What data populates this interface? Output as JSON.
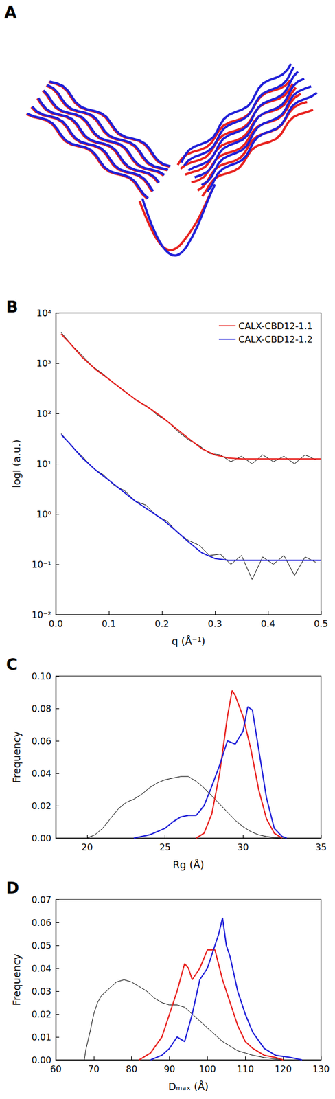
{
  "panel_a": {
    "label": "A"
  },
  "chart_data": [
    {
      "type": "line",
      "title": "B",
      "x_label": "q (Å⁻¹)",
      "y_label": "logI (a.u.)",
      "log": "y",
      "grid": false,
      "legend": "top-right",
      "xlim": [
        0,
        0.5
      ],
      "xticks": [
        {
          "value": 0,
          "label": "0.0"
        },
        0.1,
        0.2,
        0.3,
        0.4,
        0.5
      ],
      "ylim": [
        0.01,
        10000
      ],
      "yticks": [
        {
          "value": 0.01,
          "label": "10⁻²"
        },
        {
          "value": 0.1,
          "label": "10⁻¹"
        },
        {
          "value": 1,
          "label": "10⁰"
        },
        {
          "value": 10,
          "label": "10¹"
        },
        {
          "value": 100,
          "label": "10²"
        },
        {
          "value": 1000,
          "label": "10³"
        },
        {
          "value": 10000,
          "label": "10⁴"
        }
      ],
      "series": [
        {
          "color": "#000000",
          "x": [
            0.01,
            0.03,
            0.05,
            0.07,
            0.09,
            0.11,
            0.13,
            0.15,
            0.17,
            0.19,
            0.21,
            0.23,
            0.25,
            0.27,
            0.29,
            0.31,
            0.33,
            0.35,
            0.37,
            0.39,
            0.41,
            0.43,
            0.45,
            0.47,
            0.49
          ],
          "values": [
            4100,
            2300,
            1400,
            850,
            600,
            390,
            280,
            185,
            145,
            95,
            70,
            44,
            30,
            23,
            16,
            15,
            11,
            14,
            10,
            15,
            11,
            14,
            10,
            15,
            12
          ]
        },
        {
          "color": "#000000",
          "x": [
            0.01,
            0.03,
            0.05,
            0.07,
            0.09,
            0.11,
            0.13,
            0.15,
            0.17,
            0.19,
            0.21,
            0.23,
            0.25,
            0.27,
            0.29,
            0.31,
            0.33,
            0.35,
            0.37,
            0.39,
            0.41,
            0.43,
            0.45,
            0.47,
            0.49
          ],
          "values": [
            40,
            22,
            14,
            8.2,
            6.0,
            3.7,
            2.9,
            1.8,
            1.5,
            0.92,
            0.72,
            0.42,
            0.3,
            0.24,
            0.15,
            0.16,
            0.1,
            0.15,
            0.05,
            0.14,
            0.1,
            0.15,
            0.06,
            0.14,
            0.11
          ]
        },
        {
          "name": "CALX-CBD12-1.1",
          "color": "#e8221f",
          "x": [
            0.01,
            0.025,
            0.05,
            0.075,
            0.1,
            0.125,
            0.15,
            0.175,
            0.2,
            0.225,
            0.25,
            0.275,
            0.3,
            0.325,
            0.35,
            0.4,
            0.45,
            0.5
          ],
          "values": [
            3800,
            2600,
            1300,
            750,
            480,
            300,
            190,
            130,
            85,
            52,
            32,
            20,
            15,
            13,
            12.5,
            12.5,
            12.5,
            12.5
          ]
        },
        {
          "name": "CALX-CBD12-1.2",
          "color": "#1f1fd8",
          "x": [
            0.01,
            0.025,
            0.05,
            0.075,
            0.1,
            0.125,
            0.15,
            0.175,
            0.2,
            0.225,
            0.25,
            0.275,
            0.3,
            0.325,
            0.35,
            0.4,
            0.45,
            0.5
          ],
          "values": [
            38,
            26,
            13,
            7.5,
            4.7,
            2.9,
            1.8,
            1.2,
            0.8,
            0.48,
            0.28,
            0.17,
            0.13,
            0.12,
            0.12,
            0.12,
            0.12,
            0.12
          ]
        }
      ]
    },
    {
      "type": "line",
      "title": "C",
      "x_label": "Rg (Å)",
      "y_label": "Frequency",
      "grid": false,
      "xlim": [
        18,
        35
      ],
      "xticks": [
        20,
        25,
        30,
        35
      ],
      "ylim": [
        0,
        0.1
      ],
      "yticks": [
        {
          "value": 0,
          "label": "0.00"
        },
        {
          "value": 0.02,
          "label": "0.02"
        },
        {
          "value": 0.04,
          "label": "0.04"
        },
        {
          "value": 0.06,
          "label": "0.06"
        },
        {
          "value": 0.08,
          "label": "0.08"
        },
        {
          "value": 0.1,
          "label": "0.10"
        }
      ],
      "series": [
        {
          "color": "#000000",
          "x": [
            20,
            20.5,
            21,
            21.5,
            22,
            22.5,
            23,
            23.5,
            24,
            24.5,
            25,
            25.5,
            26,
            26.5,
            27,
            27.5,
            28,
            28.5,
            29,
            29.5,
            30,
            30.5,
            31,
            31.5,
            32,
            32.5
          ],
          "values": [
            0,
            0.002,
            0.006,
            0.012,
            0.018,
            0.022,
            0.024,
            0.027,
            0.031,
            0.034,
            0.036,
            0.037,
            0.038,
            0.038,
            0.035,
            0.031,
            0.026,
            0.021,
            0.016,
            0.011,
            0.007,
            0.004,
            0.002,
            0.001,
            0.0003,
            0
          ]
        },
        {
          "name": "CALX-CBD12-1.1",
          "color": "#e8221f",
          "x": [
            27,
            27.5,
            28,
            28.5,
            29,
            29.3,
            29.5,
            30,
            30.5,
            31,
            31.5,
            32,
            32.5
          ],
          "values": [
            0,
            0.003,
            0.015,
            0.04,
            0.075,
            0.091,
            0.088,
            0.075,
            0.055,
            0.03,
            0.012,
            0.003,
            0
          ]
        },
        {
          "name": "CALX-CBD12-1.2",
          "color": "#1f1fd8",
          "x": [
            23,
            23.5,
            24,
            24.5,
            25,
            25.5,
            26,
            26.5,
            27,
            27.5,
            28,
            28.5,
            29,
            29.5,
            30,
            30.3,
            30.6,
            31,
            31.5,
            32,
            32.5,
            32.8
          ],
          "values": [
            0,
            0.001,
            0.002,
            0.004,
            0.006,
            0.01,
            0.013,
            0.014,
            0.014,
            0.02,
            0.032,
            0.045,
            0.06,
            0.058,
            0.066,
            0.081,
            0.079,
            0.055,
            0.025,
            0.006,
            0.001,
            0
          ]
        }
      ]
    },
    {
      "type": "line",
      "title": "D",
      "x_label": "Dₘₐₓ (Å)",
      "y_label": "Frequency",
      "grid": false,
      "xlim": [
        60,
        130
      ],
      "xticks": [
        60,
        70,
        80,
        90,
        100,
        110,
        120,
        130
      ],
      "ylim": [
        0,
        0.07
      ],
      "yticks": [
        {
          "value": 0,
          "label": "0.00"
        },
        {
          "value": 0.01,
          "label": "0.01"
        },
        {
          "value": 0.02,
          "label": "0.02"
        },
        {
          "value": 0.03,
          "label": "0.03"
        },
        {
          "value": 0.04,
          "label": "0.04"
        },
        {
          "value": 0.05,
          "label": "0.05"
        },
        {
          "value": 0.06,
          "label": "0.06"
        },
        {
          "value": 0.07,
          "label": "0.07"
        }
      ],
      "series": [
        {
          "color": "#000000",
          "x": [
            67.5,
            68,
            69,
            70,
            71,
            72,
            74,
            76,
            78,
            80,
            82,
            84,
            86,
            88,
            90,
            92,
            94,
            96,
            98,
            100,
            102,
            104,
            106,
            108,
            110,
            112,
            115,
            120
          ],
          "values": [
            0,
            0.005,
            0.012,
            0.02,
            0.025,
            0.028,
            0.031,
            0.034,
            0.035,
            0.034,
            0.032,
            0.03,
            0.027,
            0.025,
            0.024,
            0.024,
            0.023,
            0.02,
            0.017,
            0.014,
            0.011,
            0.008,
            0.006,
            0.004,
            0.003,
            0.002,
            0.001,
            0
          ]
        },
        {
          "name": "CALX-CBD12-1.1",
          "color": "#e8221f",
          "x": [
            82,
            85,
            88,
            90,
            92,
            94,
            95,
            96,
            98,
            100,
            102,
            104,
            106,
            108,
            110,
            112,
            115,
            118,
            120
          ],
          "values": [
            0,
            0.003,
            0.01,
            0.02,
            0.03,
            0.042,
            0.04,
            0.035,
            0.04,
            0.048,
            0.048,
            0.035,
            0.025,
            0.015,
            0.008,
            0.005,
            0.002,
            0.001,
            0
          ]
        },
        {
          "name": "CALX-CBD12-1.2",
          "color": "#1f1fd8",
          "x": [
            85,
            88,
            90,
            92,
            94,
            96,
            98,
            100,
            102,
            103,
            104,
            105,
            106,
            108,
            110,
            112,
            115,
            118,
            122,
            125
          ],
          "values": [
            0,
            0.002,
            0.005,
            0.01,
            0.008,
            0.02,
            0.035,
            0.04,
            0.05,
            0.055,
            0.062,
            0.05,
            0.045,
            0.03,
            0.02,
            0.012,
            0.005,
            0.002,
            0.001,
            0
          ]
        }
      ]
    }
  ]
}
